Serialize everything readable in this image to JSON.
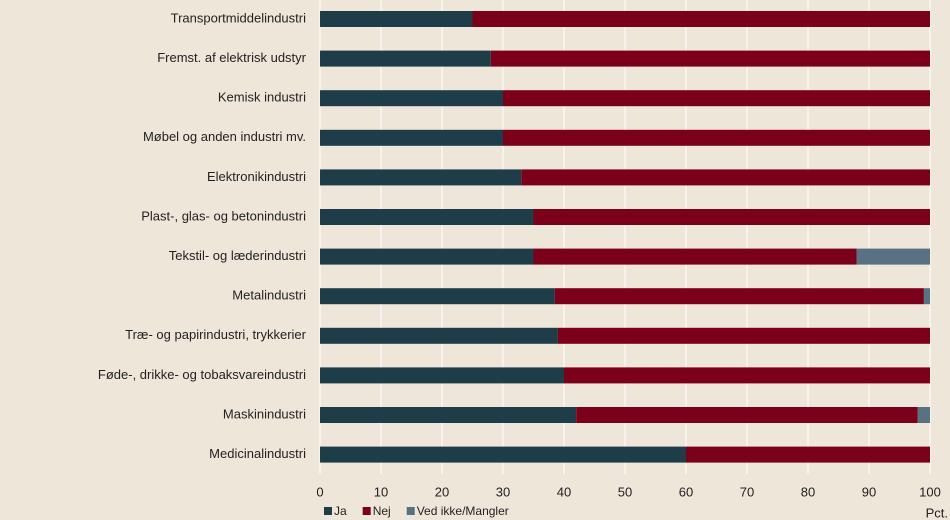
{
  "chart_data": {
    "type": "stacked-barh",
    "categories": [
      "Transportmiddelindustri",
      "Fremst. af elektrisk udstyr",
      "Kemisk industri",
      "Møbel og anden industri mv.",
      "Elektronikindustri",
      "Plast-, glas- og betonindustri",
      "Tekstil- og læderindustri",
      "Metalindustri",
      "Træ- og papirindustri, trykkerier",
      "Føde-, drikke- og tobaksvareindustri",
      "Maskinindustri",
      "Medicinalindustri"
    ],
    "series": [
      {
        "name": "Ja",
        "color": "#1e3d48",
        "values": [
          25,
          28,
          30,
          30,
          33,
          35,
          35,
          38.5,
          39,
          40,
          42,
          60
        ]
      },
      {
        "name": "Nej",
        "color": "#7b0019",
        "values": [
          75,
          72,
          70,
          70,
          67,
          65,
          53,
          60.5,
          61,
          60,
          56,
          40
        ]
      },
      {
        "name": "Ved ikke/Mangler",
        "color": "#587283",
        "values": [
          0,
          0,
          0,
          0,
          0,
          0,
          12,
          1,
          0,
          0,
          2,
          0
        ]
      }
    ],
    "xlabel": "Pct.",
    "xlim": [
      0,
      100
    ],
    "xticks": [
      0,
      10,
      20,
      30,
      40,
      50,
      60,
      70,
      80,
      90,
      100
    ],
    "grid": true,
    "legend": "bottom-left"
  }
}
